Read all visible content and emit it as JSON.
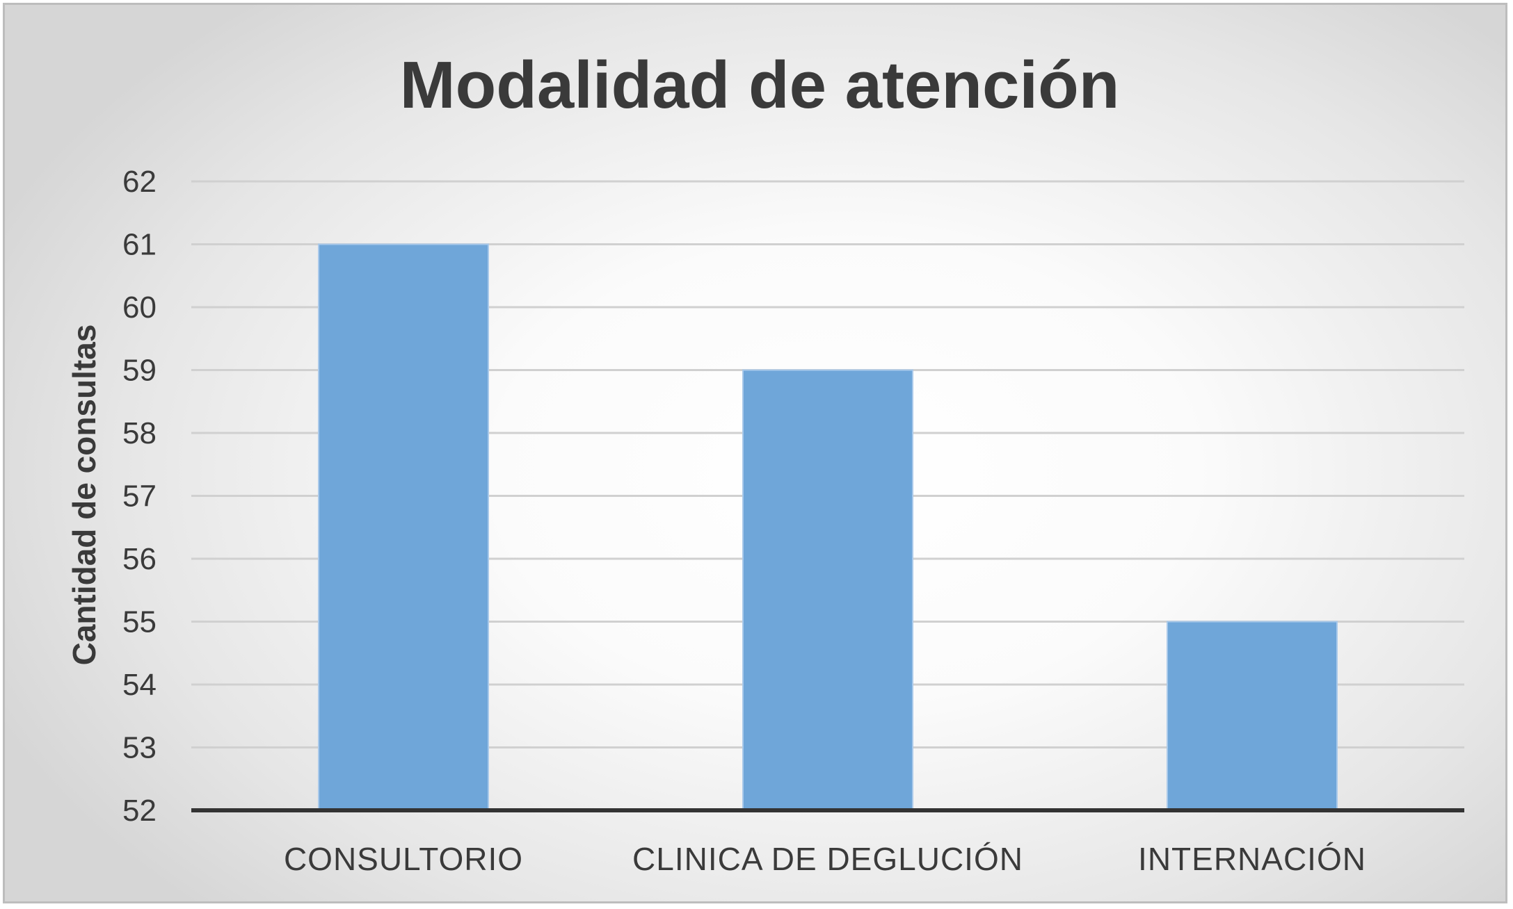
{
  "chart_data": {
    "type": "bar",
    "title": "Modalidad de atención",
    "xlabel": "",
    "ylabel": "Cantidad de consultas",
    "categories": [
      "CONSULTORIO",
      "CLINICA DE DEGLUCIÓN",
      "INTERNACIÓN"
    ],
    "values": [
      61,
      59,
      55
    ],
    "ylim": [
      52,
      62
    ],
    "yticks": [
      "52",
      "53",
      "54",
      "55",
      "56",
      "57",
      "58",
      "59",
      "60",
      "61",
      "62"
    ],
    "grid": true,
    "legend": "none",
    "colors": {
      "bar": "#6fa6d9",
      "bar_edge": "#a9c9ea",
      "grid": "#d0d0d0",
      "axis": "#333333",
      "text": "#3a3a3a"
    }
  }
}
